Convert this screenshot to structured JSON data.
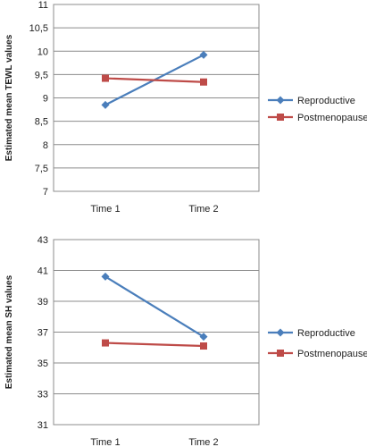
{
  "chart_data": [
    {
      "type": "line",
      "ylabel": "Estimated mean TEWL values",
      "categories": [
        "Time 1",
        "Time 2"
      ],
      "ylim": [
        7,
        11
      ],
      "ytick_labels": [
        "7",
        "7,5",
        "8",
        "8,5",
        "9",
        "9,5",
        "10",
        "10,5",
        "11"
      ],
      "grid": true,
      "legend_position": "right",
      "series": [
        {
          "name": "Reproductive",
          "color": "#4a7ebb",
          "marker": "diamond",
          "values": [
            8.85,
            9.92
          ]
        },
        {
          "name": "Postmenopause",
          "color": "#be4b48",
          "marker": "square",
          "values": [
            9.42,
            9.34
          ]
        }
      ]
    },
    {
      "type": "line",
      "ylabel": "Estimated mean SH values",
      "categories": [
        "Time 1",
        "Time 2"
      ],
      "ylim": [
        31,
        43
      ],
      "ytick_labels": [
        "31",
        "33",
        "35",
        "37",
        "39",
        "41",
        "43"
      ],
      "grid": true,
      "legend_position": "right",
      "series": [
        {
          "name": "Reproductive",
          "color": "#4a7ebb",
          "marker": "diamond",
          "values": [
            40.6,
            36.7
          ]
        },
        {
          "name": "Postmenopause",
          "color": "#be4b48",
          "marker": "square",
          "values": [
            36.3,
            36.1
          ]
        }
      ]
    }
  ]
}
